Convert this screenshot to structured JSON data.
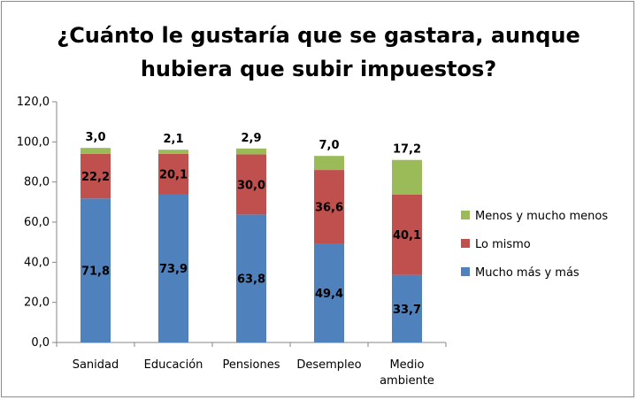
{
  "chart_data": {
    "type": "bar",
    "stacked": true,
    "title": [
      "¿Cuánto le gustaría que se gastara, aunque",
      "hubiera que subir impuestos?"
    ],
    "categories": [
      [
        "Sanidad"
      ],
      [
        "Educación"
      ],
      [
        "Pensiones"
      ],
      [
        "Desempleo"
      ],
      [
        "Medio",
        "ambiente"
      ]
    ],
    "series": [
      {
        "name": "Mucho más y más",
        "color": "#4f81bd",
        "values": [
          71.8,
          73.9,
          63.8,
          49.4,
          33.7
        ],
        "labels": [
          "71,8",
          "73,9",
          "63,8",
          "49,4",
          "33,7"
        ]
      },
      {
        "name": "Lo mismo",
        "color": "#c0504d",
        "values": [
          22.2,
          20.1,
          30.0,
          36.6,
          40.1
        ],
        "labels": [
          "22,2",
          "20,1",
          "30,0",
          "36,6",
          "40,1"
        ]
      },
      {
        "name": "Menos y mucho menos",
        "color": "#9bbb59",
        "values": [
          3.0,
          2.1,
          2.9,
          7.0,
          17.2
        ],
        "labels": [
          "3,0",
          "2,1",
          "2,9",
          "7,0",
          "17,2"
        ]
      }
    ],
    "ylim": [
      0,
      120
    ],
    "yticks": [
      "0,0",
      "20,0",
      "40,0",
      "60,0",
      "80,0",
      "100,0",
      "120,0"
    ],
    "grid": false,
    "legend_position": "right",
    "legend_order": [
      "Menos y mucho menos",
      "Lo mismo",
      "Mucho más y más"
    ]
  }
}
